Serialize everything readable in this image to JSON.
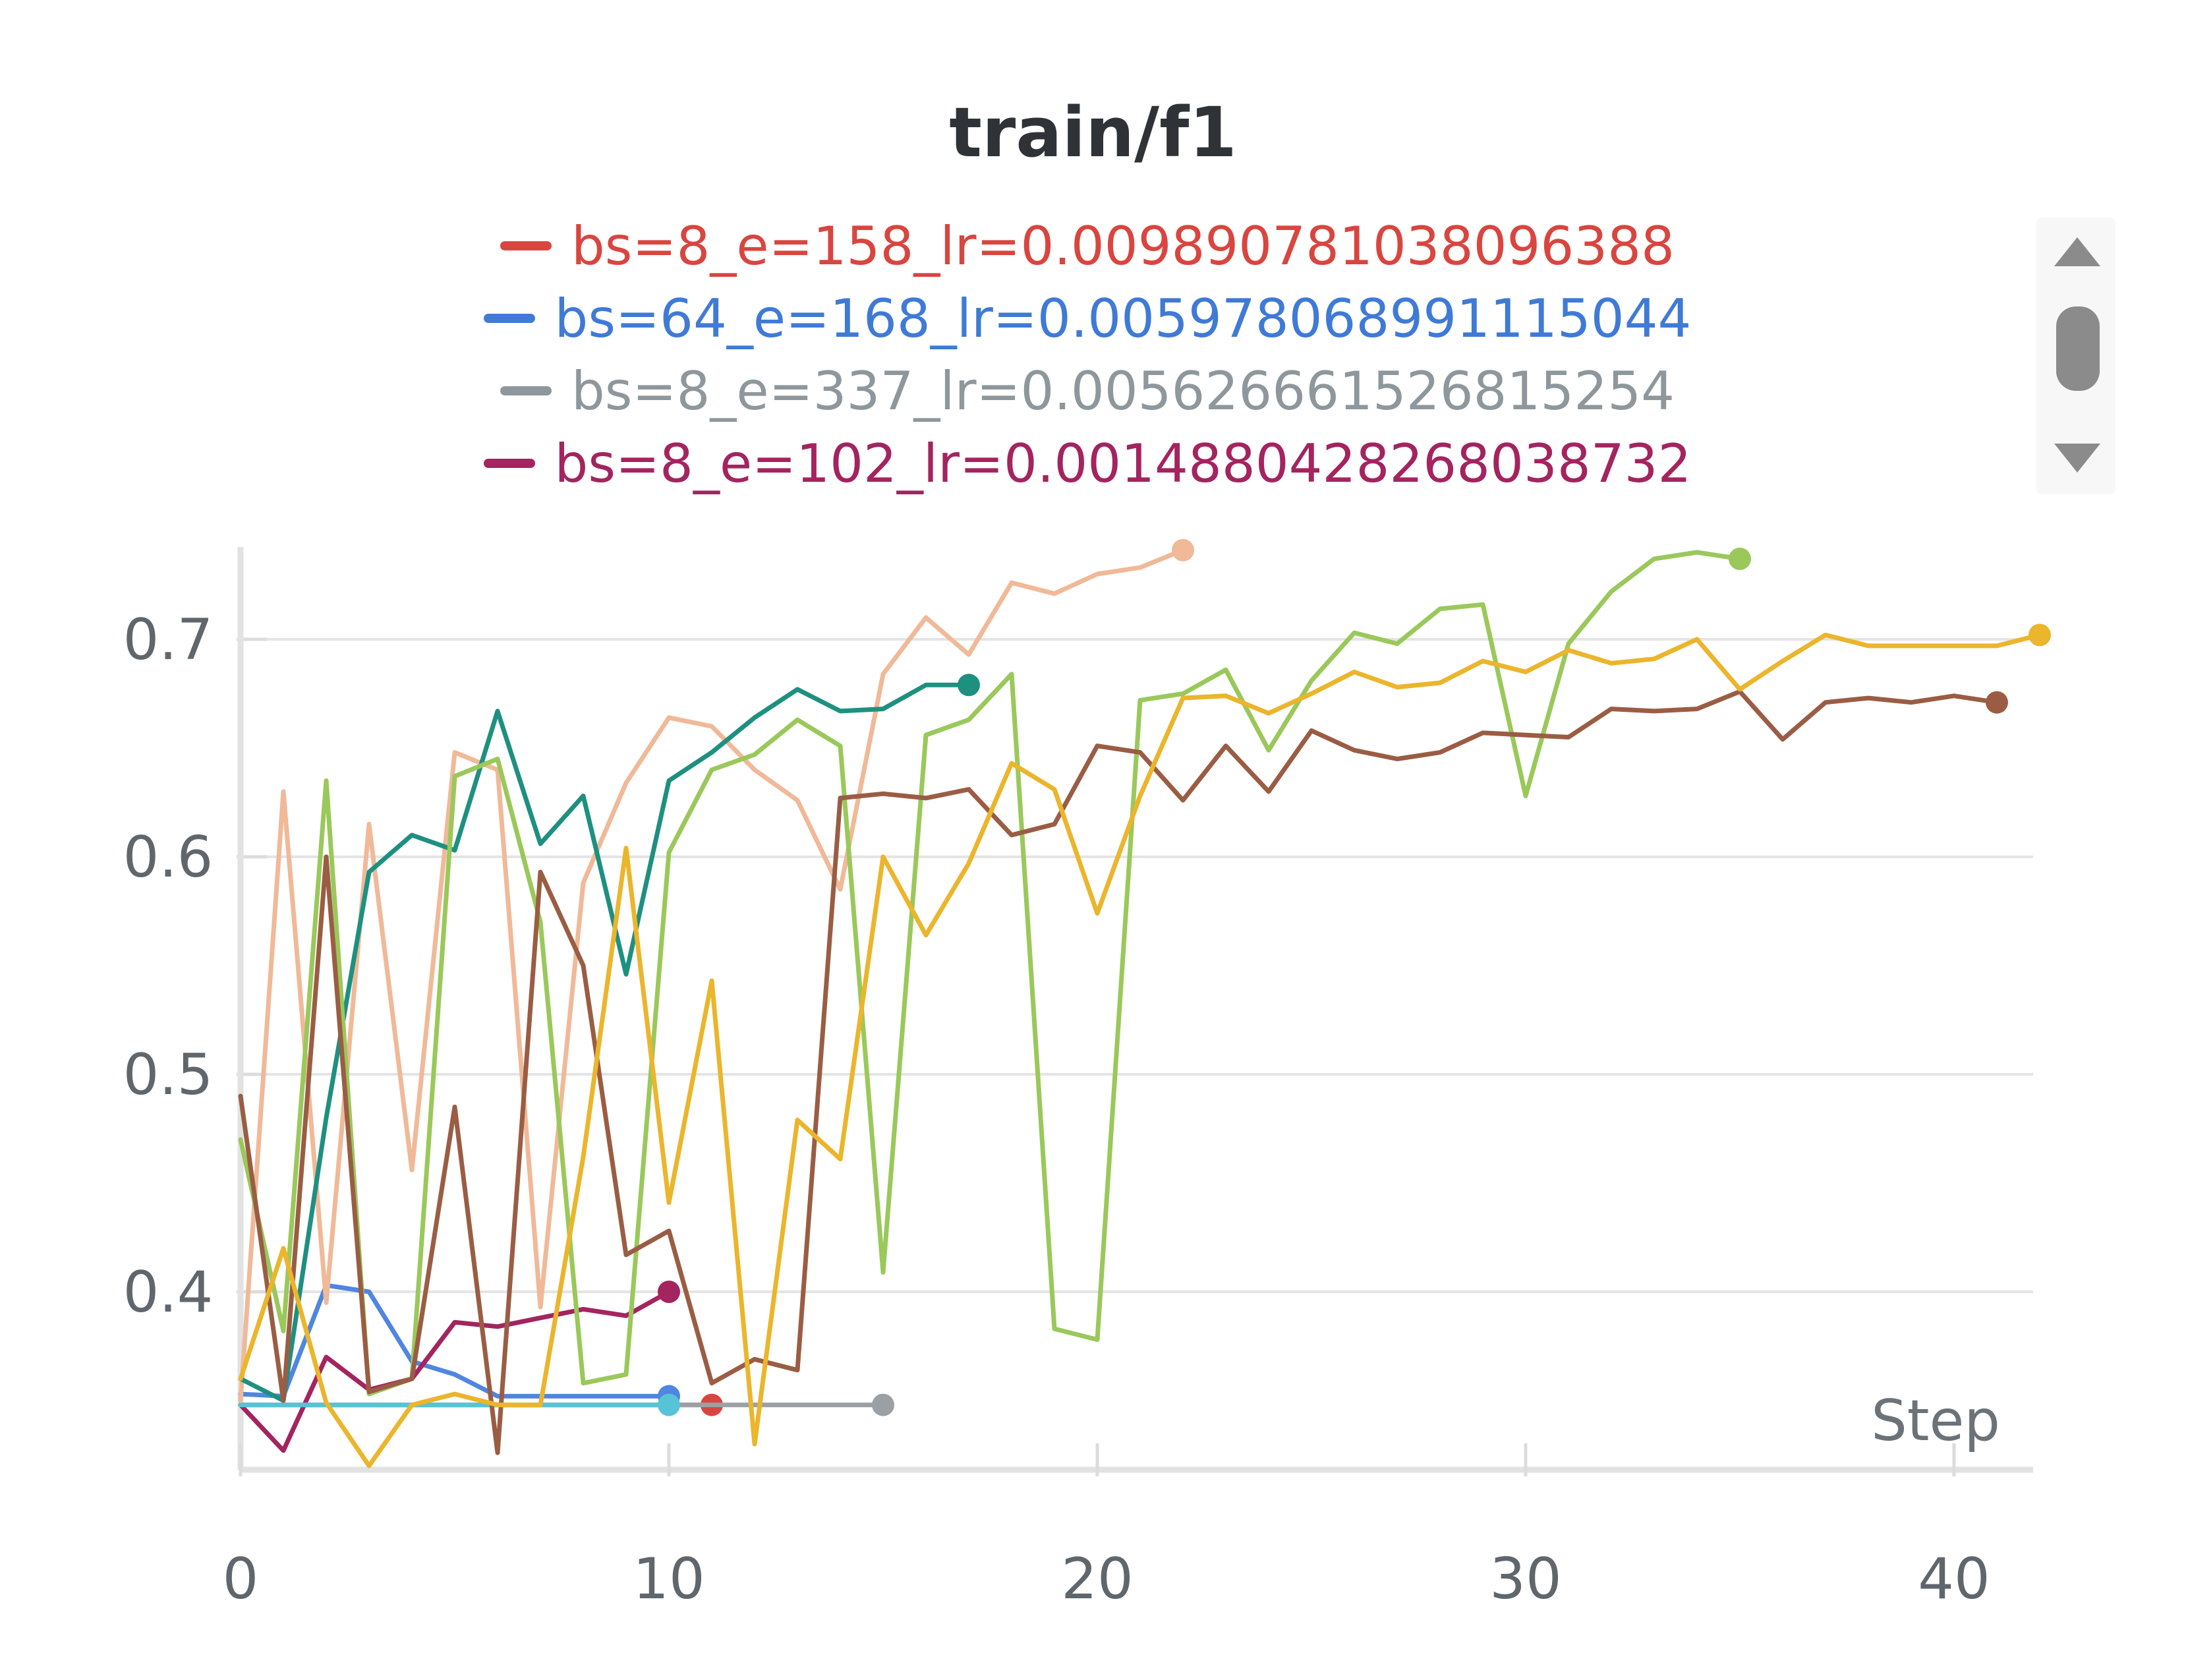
{
  "chart_data": {
    "type": "line",
    "title": "train/f1",
    "xlabel": "Step",
    "ylabel": "",
    "xlim": [
      0,
      42
    ],
    "ylim": [
      0.32,
      0.74
    ],
    "x_ticks": [
      0,
      10,
      20,
      30,
      40
    ],
    "y_ticks": [
      0.4,
      0.5,
      0.6,
      0.7
    ],
    "x_tick_labels": [
      "0",
      "10",
      "20",
      "30",
      "40"
    ],
    "y_tick_labels": [
      "0.4",
      "0.5",
      "0.6",
      "0.7"
    ],
    "grid": true,
    "legend_position": "top",
    "legend": [
      {
        "label": "bs=8_e=158_lr=0.009890781038096388",
        "color": "#d9453f"
      },
      {
        "label": "bs=64_e=168_lr=0.005978068991115044",
        "color": "#3f7ad6"
      },
      {
        "label": "bs=8_e=337_lr=0.005626661526815254",
        "color": "#8e979c"
      },
      {
        "label": "bs=8_e=102_lr=0.001488042826803873​2",
        "color": "#a3245f"
      }
    ],
    "series": [
      {
        "name": "bs=8_e=158_lr=0.009890781038096388",
        "color": "#d9453f",
        "x": [
          0,
          1,
          2,
          3,
          4,
          5,
          6,
          7,
          8,
          9,
          10,
          11
        ],
        "y": [
          0.348,
          0.348,
          0.348,
          0.348,
          0.348,
          0.348,
          0.348,
          0.348,
          0.348,
          0.348,
          0.348,
          0.348
        ]
      },
      {
        "name": "bs=64_e=168_lr=0.005978068991115044",
        "color": "#4f86df",
        "x": [
          0,
          1,
          2,
          3,
          4,
          5,
          6,
          7,
          8,
          9,
          10
        ],
        "y": [
          0.353,
          0.352,
          0.403,
          0.4,
          0.368,
          0.362,
          0.352,
          0.352,
          0.352,
          0.352,
          0.352
        ]
      },
      {
        "name": "bs=8_e=337_lr=0.005626661526815254",
        "color": "#9aa0a4",
        "x": [
          0,
          1,
          2,
          3,
          4,
          5,
          6,
          7,
          8,
          9,
          10,
          11,
          12,
          13,
          14,
          15
        ],
        "y": [
          0.348,
          0.348,
          0.348,
          0.348,
          0.348,
          0.348,
          0.348,
          0.348,
          0.348,
          0.348,
          0.348,
          0.348,
          0.348,
          0.348,
          0.348,
          0.348
        ]
      },
      {
        "name": "bs=8_e=102_lr=0.0014880428268038732",
        "color": "#a3245f",
        "x": [
          0,
          1,
          2,
          3,
          4,
          5,
          6,
          7,
          8,
          9,
          10
        ],
        "y": [
          0.348,
          0.327,
          0.37,
          0.355,
          0.36,
          0.386,
          0.384,
          0.388,
          0.392,
          0.389,
          0.4
        ]
      },
      {
        "name": "",
        "color": "#56c4d6",
        "x": [
          0,
          1,
          2,
          3,
          4,
          5,
          6,
          7,
          8,
          9,
          10
        ],
        "y": [
          0.348,
          0.348,
          0.348,
          0.348,
          0.348,
          0.348,
          0.348,
          0.348,
          0.348,
          0.348,
          0.348
        ]
      },
      {
        "name": "",
        "color": "#f0b998",
        "x": [
          0,
          1,
          2,
          3,
          4,
          5,
          6,
          7,
          8,
          9,
          10,
          11,
          12,
          13,
          14,
          15,
          16,
          17,
          18,
          19,
          20,
          21,
          22
        ],
        "y": [
          0.35,
          0.63,
          0.395,
          0.615,
          0.456,
          0.648,
          0.64,
          0.393,
          0.588,
          0.634,
          0.664,
          0.66,
          0.64,
          0.626,
          0.585,
          0.684,
          0.71,
          0.693,
          0.726,
          0.721,
          0.73,
          0.733,
          0.741
        ]
      },
      {
        "name": "",
        "color": "#1e9080",
        "x": [
          0,
          1,
          2,
          3,
          4,
          5,
          6,
          7,
          8,
          9,
          10,
          11,
          12,
          13,
          14,
          15,
          16,
          17
        ],
        "y": [
          0.36,
          0.35,
          0.48,
          0.593,
          0.61,
          0.603,
          0.667,
          0.606,
          0.628,
          0.546,
          0.635,
          0.648,
          0.664,
          0.677,
          0.667,
          0.668,
          0.679,
          0.679
        ]
      },
      {
        "name": "",
        "color": "#9ac85a",
        "x": [
          0,
          1,
          2,
          3,
          4,
          5,
          6,
          7,
          8,
          9,
          10,
          11,
          12,
          13,
          14,
          15,
          16,
          17,
          18,
          19,
          20,
          21,
          22,
          23,
          24,
          25,
          26,
          27,
          28,
          29,
          30,
          31,
          32,
          33,
          34,
          35
        ],
        "y": [
          0.47,
          0.382,
          0.635,
          0.353,
          0.36,
          0.637,
          0.645,
          0.57,
          0.358,
          0.362,
          0.602,
          0.64,
          0.647,
          0.663,
          0.651,
          0.409,
          0.656,
          0.663,
          0.684,
          0.383,
          0.378,
          0.672,
          0.675,
          0.686,
          0.649,
          0.681,
          0.703,
          0.698,
          0.714,
          0.716,
          0.628,
          0.698,
          0.722,
          0.737,
          0.74,
          0.737
        ]
      },
      {
        "name": "",
        "color": "#9a5d44",
        "x": [
          0,
          1,
          2,
          3,
          4,
          5,
          6,
          7,
          8,
          9,
          10,
          11,
          12,
          13,
          14,
          15,
          16,
          17,
          18,
          19,
          20,
          21,
          22,
          23,
          24,
          25,
          26,
          27,
          28,
          29,
          30,
          31,
          32,
          33,
          34,
          35,
          36,
          37,
          38,
          39,
          40,
          41
        ],
        "y": [
          0.49,
          0.35,
          0.6,
          0.354,
          0.36,
          0.485,
          0.326,
          0.593,
          0.55,
          0.417,
          0.428,
          0.358,
          0.369,
          0.364,
          0.627,
          0.629,
          0.627,
          0.631,
          0.61,
          0.615,
          0.651,
          0.648,
          0.626,
          0.651,
          0.63,
          0.658,
          0.649,
          0.645,
          0.648,
          0.657,
          0.656,
          0.655,
          0.668,
          0.667,
          0.668,
          0.676,
          0.654,
          0.671,
          0.673,
          0.671,
          0.674,
          0.671
        ]
      },
      {
        "name": "",
        "color": "#ebb52c",
        "x": [
          0,
          1,
          2,
          3,
          4,
          5,
          6,
          7,
          8,
          9,
          10,
          11,
          12,
          13,
          14,
          15,
          16,
          17,
          18,
          19,
          20,
          21,
          22,
          23,
          24,
          25,
          26,
          27,
          28,
          29,
          30,
          31,
          32,
          33,
          34,
          35,
          36,
          37,
          38,
          39,
          40,
          41,
          42
        ],
        "y": [
          0.36,
          0.42,
          0.349,
          0.32,
          0.348,
          0.353,
          0.348,
          0.348,
          0.462,
          0.604,
          0.441,
          0.543,
          0.33,
          0.479,
          0.461,
          0.6,
          0.564,
          0.597,
          0.643,
          0.631,
          0.574,
          0.628,
          0.673,
          0.674,
          0.666,
          0.675,
          0.685,
          0.678,
          0.68,
          0.69,
          0.685,
          0.695,
          0.689,
          0.691,
          0.7,
          0.677,
          0.69,
          0.702,
          0.697,
          0.697,
          0.697,
          0.697,
          0.702
        ]
      }
    ]
  }
}
